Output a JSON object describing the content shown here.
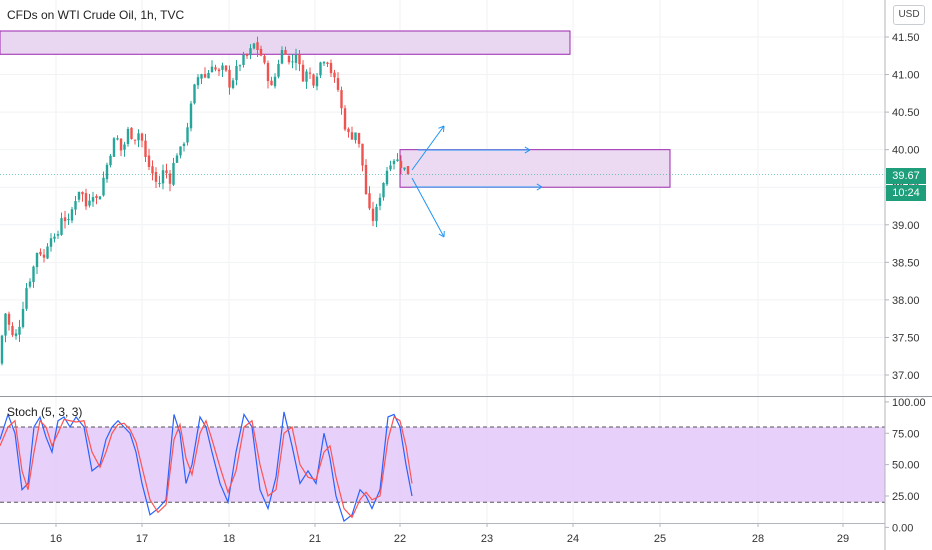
{
  "header": {
    "title": "CFDs on WTI Crude Oil, 1h, TVC",
    "currency_button": "USD"
  },
  "price_tag": {
    "price": "39.67",
    "countdown": "10:24",
    "color": "#1e9e7a"
  },
  "colors": {
    "up": "#26a69a",
    "down": "#ef5350",
    "zone_fill": "#e9d6f0",
    "zone_stroke": "#9c27b0",
    "arrow": "#2196f3",
    "stoch_k": "#2962ff",
    "stoch_d": "#ff5252",
    "stoch_band": "#e1c4f7"
  },
  "x_axis": {
    "labels": [
      "16",
      "17",
      "18",
      "21",
      "22",
      "23",
      "24",
      "25",
      "28",
      "29"
    ]
  },
  "chart_data": [
    {
      "type": "candlestick",
      "title": "CFDs on WTI Crude Oil, 1h, TVC",
      "y_ticks": [
        "41.50",
        "41.00",
        "40.50",
        "40.00",
        "39.50",
        "39.00",
        "38.50",
        "38.00",
        "37.50",
        "37.00"
      ],
      "ylim": [
        36.8,
        41.8
      ],
      "last_price": 39.67,
      "path": [
        [
          0,
          37.15
        ],
        [
          4,
          37.9
        ],
        [
          8,
          37.7
        ],
        [
          14,
          37.45
        ],
        [
          20,
          37.7
        ],
        [
          26,
          38.15
        ],
        [
          32,
          38.35
        ],
        [
          38,
          38.7
        ],
        [
          44,
          38.55
        ],
        [
          50,
          38.9
        ],
        [
          56,
          38.75
        ],
        [
          62,
          39.15
        ],
        [
          68,
          39.0
        ],
        [
          74,
          39.3
        ],
        [
          80,
          39.5
        ],
        [
          86,
          39.25
        ],
        [
          92,
          39.45
        ],
        [
          98,
          39.3
        ],
        [
          104,
          39.65
        ],
        [
          110,
          39.95
        ],
        [
          116,
          40.2
        ],
        [
          122,
          39.95
        ],
        [
          128,
          40.25
        ],
        [
          134,
          40.15
        ],
        [
          140,
          40.25
        ],
        [
          146,
          39.85
        ],
        [
          152,
          39.7
        ],
        [
          158,
          39.5
        ],
        [
          164,
          39.75
        ],
        [
          170,
          39.6
        ],
        [
          176,
          39.95
        ],
        [
          182,
          40.0
        ],
        [
          188,
          40.35
        ],
        [
          194,
          40.8
        ],
        [
          200,
          41.05
        ],
        [
          206,
          40.95
        ],
        [
          212,
          41.15
        ],
        [
          218,
          41.0
        ],
        [
          224,
          41.1
        ],
        [
          230,
          40.85
        ],
        [
          236,
          41.05
        ],
        [
          242,
          41.2
        ],
        [
          248,
          41.25
        ],
        [
          254,
          41.4
        ],
        [
          260,
          41.3
        ],
        [
          266,
          41.05
        ],
        [
          272,
          40.8
        ],
        [
          278,
          41.15
        ],
        [
          284,
          41.4
        ],
        [
          290,
          41.1
        ],
        [
          296,
          41.3
        ],
        [
          302,
          40.95
        ],
        [
          308,
          41.05
        ],
        [
          314,
          40.9
        ],
        [
          320,
          41.15
        ],
        [
          326,
          41.25
        ],
        [
          332,
          41.0
        ],
        [
          338,
          40.8
        ],
        [
          344,
          40.35
        ],
        [
          350,
          40.15
        ],
        [
          356,
          40.25
        ],
        [
          362,
          39.85
        ],
        [
          368,
          39.2
        ],
        [
          374,
          39.05
        ],
        [
          380,
          39.4
        ],
        [
          386,
          39.7
        ],
        [
          392,
          39.9
        ],
        [
          398,
          39.85
        ],
        [
          404,
          39.75
        ],
        [
          410,
          39.67
        ]
      ]
    },
    {
      "type": "line",
      "title": "Stoch (5, 3, 3)",
      "y_ticks": [
        "100.00",
        "75.00",
        "50.00",
        "25.00",
        "0.00"
      ],
      "ylim": [
        0,
        100
      ],
      "band": [
        20,
        80
      ],
      "series": [
        {
          "key": "k",
          "points": [
            [
              0,
              70
            ],
            [
              8,
              90
            ],
            [
              15,
              75
            ],
            [
              22,
              30
            ],
            [
              28,
              35
            ],
            [
              34,
              80
            ],
            [
              40,
              88
            ],
            [
              46,
              72
            ],
            [
              52,
              60
            ],
            [
              58,
              85
            ],
            [
              64,
              88
            ],
            [
              70,
              80
            ],
            [
              76,
              88
            ],
            [
              84,
              80
            ],
            [
              92,
              45
            ],
            [
              100,
              50
            ],
            [
              106,
              70
            ],
            [
              112,
              80
            ],
            [
              118,
              85
            ],
            [
              124,
              80
            ],
            [
              130,
              75
            ],
            [
              136,
              60
            ],
            [
              142,
              35
            ],
            [
              150,
              10
            ],
            [
              158,
              15
            ],
            [
              166,
              22
            ],
            [
              174,
              90
            ],
            [
              180,
              75
            ],
            [
              186,
              35
            ],
            [
              192,
              50
            ],
            [
              200,
              88
            ],
            [
              206,
              80
            ],
            [
              212,
              60
            ],
            [
              220,
              35
            ],
            [
              228,
              20
            ],
            [
              236,
              60
            ],
            [
              244,
              90
            ],
            [
              252,
              80
            ],
            [
              260,
              30
            ],
            [
              268,
              15
            ],
            [
              276,
              40
            ],
            [
              284,
              92
            ],
            [
              292,
              65
            ],
            [
              300,
              35
            ],
            [
              308,
              45
            ],
            [
              316,
              35
            ],
            [
              324,
              75
            ],
            [
              330,
              55
            ],
            [
              336,
              25
            ],
            [
              344,
              5
            ],
            [
              352,
              10
            ],
            [
              360,
              30
            ],
            [
              366,
              25
            ],
            [
              372,
              15
            ],
            [
              380,
              30
            ],
            [
              388,
              88
            ],
            [
              394,
              90
            ],
            [
              400,
              80
            ],
            [
              406,
              50
            ],
            [
              412,
              25
            ]
          ]
        },
        {
          "key": "d",
          "points": [
            [
              0,
              65
            ],
            [
              8,
              80
            ],
            [
              15,
              85
            ],
            [
              22,
              45
            ],
            [
              28,
              30
            ],
            [
              34,
              60
            ],
            [
              40,
              85
            ],
            [
              46,
              80
            ],
            [
              52,
              65
            ],
            [
              58,
              75
            ],
            [
              64,
              86
            ],
            [
              70,
              85
            ],
            [
              76,
              84
            ],
            [
              84,
              85
            ],
            [
              92,
              60
            ],
            [
              100,
              48
            ],
            [
              106,
              60
            ],
            [
              112,
              75
            ],
            [
              118,
              82
            ],
            [
              124,
              83
            ],
            [
              130,
              78
            ],
            [
              136,
              68
            ],
            [
              142,
              48
            ],
            [
              150,
              22
            ],
            [
              158,
              12
            ],
            [
              166,
              18
            ],
            [
              174,
              70
            ],
            [
              180,
              82
            ],
            [
              186,
              55
            ],
            [
              192,
              42
            ],
            [
              200,
              75
            ],
            [
              206,
              85
            ],
            [
              212,
              70
            ],
            [
              220,
              48
            ],
            [
              228,
              28
            ],
            [
              236,
              45
            ],
            [
              244,
              80
            ],
            [
              252,
              85
            ],
            [
              260,
              50
            ],
            [
              268,
              25
            ],
            [
              276,
              30
            ],
            [
              284,
              75
            ],
            [
              292,
              80
            ],
            [
              300,
              50
            ],
            [
              308,
              40
            ],
            [
              316,
              38
            ],
            [
              324,
              60
            ],
            [
              330,
              65
            ],
            [
              336,
              40
            ],
            [
              344,
              15
            ],
            [
              352,
              8
            ],
            [
              360,
              22
            ],
            [
              366,
              28
            ],
            [
              372,
              22
            ],
            [
              380,
              25
            ],
            [
              388,
              70
            ],
            [
              394,
              88
            ],
            [
              400,
              85
            ],
            [
              406,
              65
            ],
            [
              412,
              35
            ]
          ]
        }
      ]
    }
  ],
  "annotations": {
    "resistance_zone": {
      "from": 41.27,
      "to": 41.58
    },
    "target_zone": {
      "from": 39.5,
      "to": 40.0
    },
    "arrows": [
      "up-arrow",
      "right-arrow-upper",
      "right-arrow-lower",
      "down-arrow"
    ]
  }
}
